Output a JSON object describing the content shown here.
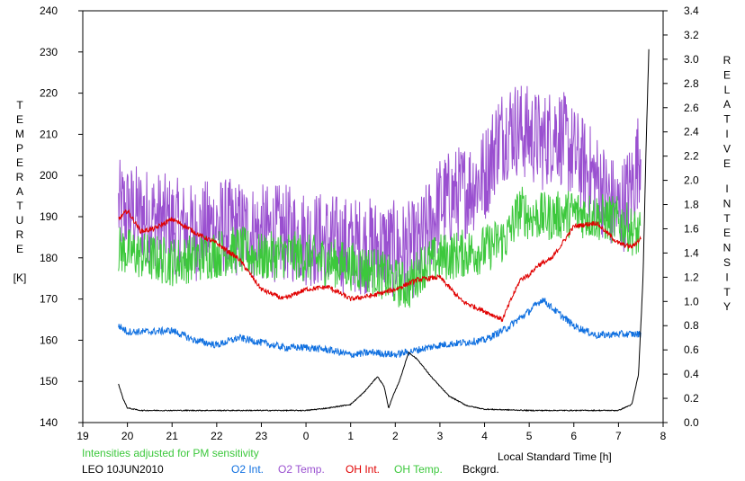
{
  "chart_data": {
    "type": "line",
    "title": "",
    "note": "Intensities adjusted for PM sensitivity",
    "station_date": "LEO 10JUN2010",
    "xlabel": "Local Standard Time [h]",
    "ylabel_left": "TEMPERATURE [K]",
    "ylabel_left_chars": [
      "T",
      "E",
      "M",
      "P",
      "E",
      "R",
      "A",
      "T",
      "U",
      "R",
      "E"
    ],
    "ylabel_left_unit": "[K]",
    "ylabel_right": "RELATIVE INTENSITY",
    "ylabel_right_word1": [
      "R",
      "E",
      "L",
      "A",
      "T",
      "I",
      "V",
      "E"
    ],
    "ylabel_right_word2": [
      "I",
      "N",
      "T",
      "E",
      "N",
      "S",
      "I",
      "T",
      "Y"
    ],
    "x_axis_hours": [
      19,
      20,
      21,
      22,
      23,
      0,
      1,
      2,
      3,
      4,
      5,
      6,
      7,
      8
    ],
    "x_ticks": [
      19,
      20,
      21,
      22,
      23,
      24,
      25,
      26,
      27,
      28,
      29,
      30,
      31,
      32
    ],
    "xlim": [
      19,
      32
    ],
    "ylim_left": [
      140,
      240
    ],
    "y_ticks_left": [
      140,
      150,
      160,
      170,
      180,
      190,
      200,
      210,
      220,
      230,
      240
    ],
    "ylim_right": [
      0,
      3.4
    ],
    "y_ticks_right": [
      "0.0",
      "0.2",
      "0.4",
      "0.6",
      "0.8",
      "1.0",
      "1.2",
      "1.4",
      "1.6",
      "1.8",
      "2.0",
      "2.2",
      "2.4",
      "2.6",
      "2.8",
      "3.0",
      "3.2",
      "3.4"
    ],
    "grid": false,
    "legend": [
      {
        "name": "O2 Int.",
        "color": "#1070e0"
      },
      {
        "name": "O2 Temp.",
        "color": "#9a50d0"
      },
      {
        "name": "OH Int.",
        "color": "#e00000"
      },
      {
        "name": "OH Temp.",
        "color": "#3cc83c"
      },
      {
        "name": "Bckgrd.",
        "color": "#000000"
      }
    ],
    "series": [
      {
        "name": "O2 Temp.",
        "axis": "left",
        "color": "#9a50d0",
        "noise": 12,
        "x": [
          19.8,
          20.5,
          21.0,
          21.5,
          22.0,
          22.5,
          23.0,
          23.5,
          24.0,
          24.5,
          25.0,
          25.5,
          26.0,
          26.5,
          27.0,
          27.5,
          28.0,
          28.3,
          28.6,
          29.0,
          29.3,
          29.6,
          30.0,
          30.5,
          31.0,
          31.3,
          31.5
        ],
        "values": [
          192,
          190,
          188,
          186,
          188,
          187,
          186,
          186,
          185,
          184,
          183,
          183,
          182,
          182,
          193,
          196,
          200,
          209,
          212,
          210,
          208,
          211,
          205,
          199,
          191,
          197,
          207
        ]
      },
      {
        "name": "OH Temp.",
        "axis": "left",
        "color": "#3cc83c",
        "noise": 6,
        "x": [
          19.8,
          20.5,
          21.0,
          21.5,
          22.0,
          22.5,
          23.0,
          23.5,
          24.0,
          24.5,
          25.0,
          25.5,
          26.0,
          26.3,
          26.6,
          27.0,
          27.5,
          28.0,
          28.5,
          28.8,
          29.0,
          29.5,
          30.0,
          30.5,
          31.0,
          31.5
        ],
        "values": [
          182,
          180,
          179,
          180,
          181,
          182,
          180,
          181,
          180,
          179,
          178,
          177,
          174,
          173,
          178,
          180,
          181,
          182,
          185,
          192,
          190,
          190,
          191,
          190,
          189,
          185
        ]
      },
      {
        "name": "OH Int.",
        "axis": "right",
        "color": "#e00000",
        "noise": 0.02,
        "x": [
          19.8,
          20.0,
          20.3,
          20.6,
          21.0,
          21.3,
          21.6,
          22.0,
          22.5,
          23.0,
          23.5,
          24.0,
          24.5,
          25.0,
          25.5,
          26.0,
          26.5,
          27.0,
          27.5,
          28.0,
          28.4,
          28.6,
          28.8,
          29.0,
          29.2,
          29.5,
          30.0,
          30.5,
          31.0,
          31.3,
          31.5
        ],
        "values": [
          1.68,
          1.75,
          1.58,
          1.6,
          1.68,
          1.62,
          1.55,
          1.48,
          1.35,
          1.1,
          1.02,
          1.1,
          1.12,
          1.02,
          1.05,
          1.1,
          1.18,
          1.2,
          1.0,
          0.92,
          0.85,
          1.02,
          1.18,
          1.22,
          1.3,
          1.35,
          1.62,
          1.65,
          1.48,
          1.45,
          1.52
        ]
      },
      {
        "name": "O2 Int.",
        "axis": "right",
        "color": "#1070e0",
        "noise": 0.03,
        "x": [
          19.8,
          20.0,
          20.5,
          21.0,
          21.5,
          22.0,
          22.5,
          23.0,
          23.5,
          24.0,
          24.5,
          25.0,
          25.5,
          26.0,
          26.5,
          27.0,
          27.5,
          28.0,
          28.5,
          29.0,
          29.3,
          29.5,
          30.0,
          30.5,
          31.0,
          31.5
        ],
        "values": [
          0.8,
          0.75,
          0.75,
          0.76,
          0.68,
          0.64,
          0.7,
          0.66,
          0.62,
          0.62,
          0.6,
          0.56,
          0.58,
          0.56,
          0.6,
          0.64,
          0.66,
          0.68,
          0.78,
          0.92,
          1.02,
          0.95,
          0.8,
          0.72,
          0.73,
          0.73
        ]
      },
      {
        "name": "Bckgrd.",
        "axis": "right",
        "color": "#000000",
        "noise": 0.004,
        "x": [
          19.8,
          19.9,
          20.0,
          20.3,
          21.0,
          22.0,
          23.0,
          24.0,
          24.5,
          25.0,
          25.3,
          25.6,
          25.75,
          25.85,
          25.95,
          26.1,
          26.3,
          26.5,
          26.8,
          27.2,
          27.6,
          28.0,
          29.0,
          30.0,
          31.0,
          31.3,
          31.45,
          31.55,
          31.62,
          31.68
        ],
        "values": [
          0.32,
          0.2,
          0.12,
          0.1,
          0.1,
          0.1,
          0.1,
          0.1,
          0.12,
          0.15,
          0.25,
          0.38,
          0.3,
          0.12,
          0.22,
          0.35,
          0.58,
          0.52,
          0.38,
          0.22,
          0.14,
          0.11,
          0.1,
          0.1,
          0.1,
          0.15,
          0.4,
          1.2,
          2.3,
          3.08
        ]
      }
    ]
  }
}
